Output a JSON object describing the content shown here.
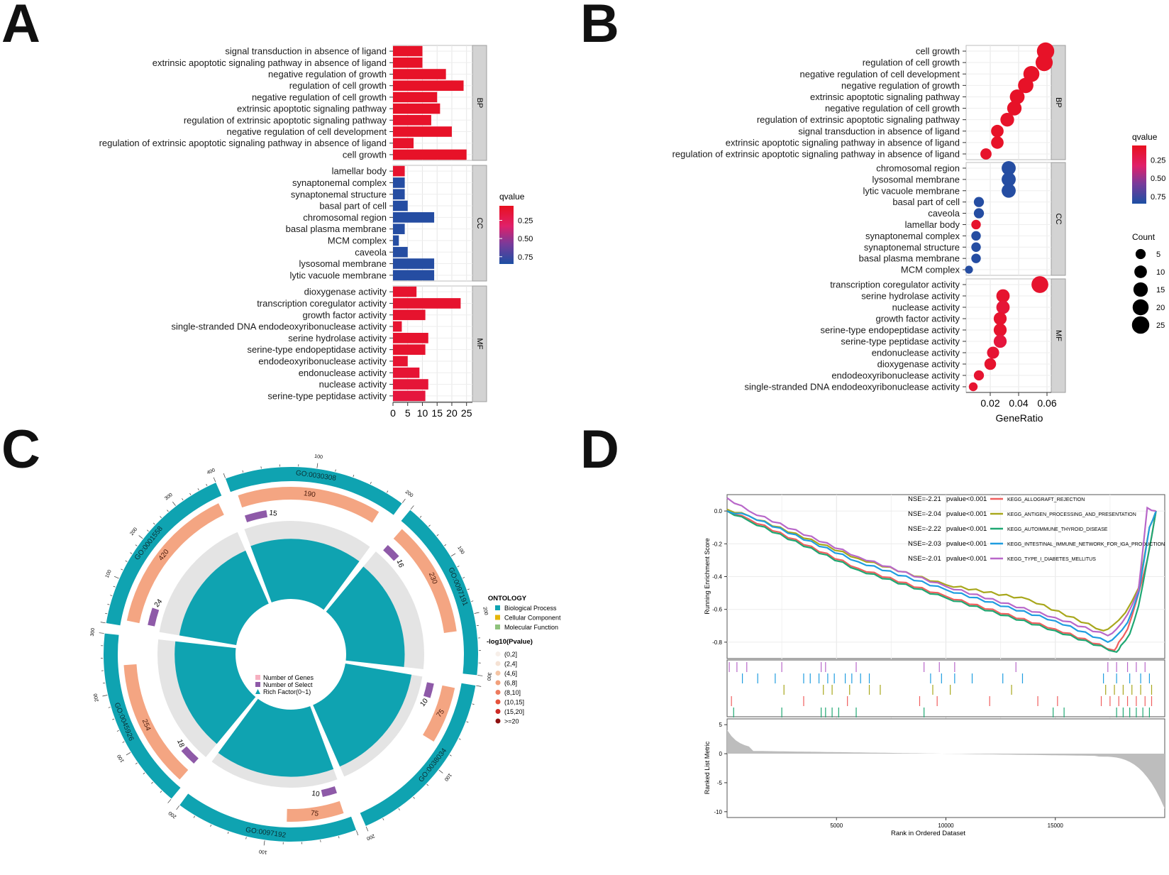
{
  "panel_labels": [
    "A",
    "B",
    "C",
    "D"
  ],
  "colors": {
    "red": "#e8101f",
    "mid": "#6a3a9e",
    "blue": "#1c4fa3",
    "teal": "#0fa3b1",
    "salmon": "#f4a582",
    "purple": "#8e5aa8",
    "strip": "#d3d3d3"
  },
  "chart_data": [
    {
      "id": "A",
      "type": "bar",
      "orientation": "horizontal",
      "xlim": [
        0,
        27
      ],
      "xticks": [
        "0",
        "5",
        "10",
        "15",
        "20",
        "25"
      ],
      "legend": {
        "title": "qvalue",
        "ticks": [
          "0.25",
          "0.50",
          "0.75"
        ],
        "range": [
          0.05,
          0.85
        ]
      },
      "facets": [
        {
          "strip": "BP",
          "categories": [
            "signal transduction in absence of ligand",
            "extrinsic apoptotic signaling pathway in absence of ligand",
            "negative regulation of growth",
            "regulation of cell growth",
            "negative regulation of cell growth",
            "extrinsic apoptotic signaling pathway",
            "regulation of extrinsic apoptotic signaling pathway",
            "negative regulation of cell development",
            "regulation of extrinsic apoptotic signaling pathway in absence of ligand",
            "cell growth"
          ],
          "values": [
            10,
            10,
            18,
            24,
            15,
            16,
            13,
            20,
            7,
            25
          ],
          "qvalues": [
            0.08,
            0.08,
            0.08,
            0.08,
            0.08,
            0.08,
            0.09,
            0.08,
            0.09,
            0.08
          ]
        },
        {
          "strip": "CC",
          "categories": [
            "lamellar body",
            "synaptonemal complex",
            "synaptonemal structure",
            "basal part of cell",
            "chromosomal region",
            "basal plasma membrane",
            "MCM complex",
            "caveola",
            "lysosomal membrane",
            "lytic vacuole membrane"
          ],
          "values": [
            4,
            4,
            4,
            5,
            14,
            4,
            2,
            5,
            14,
            14
          ],
          "qvalues": [
            0.1,
            0.82,
            0.82,
            0.82,
            0.82,
            0.82,
            0.82,
            0.82,
            0.82,
            0.82
          ]
        },
        {
          "strip": "MF",
          "categories": [
            "dioxygenase activity",
            "transcription coregulator activity",
            "growth factor activity",
            "single-stranded DNA endodeoxyribonuclease activity",
            "serine hydrolase activity",
            "serine-type endopeptidase activity",
            "endodeoxyribonuclease activity",
            "endonuclease activity",
            "nuclease activity",
            "serine-type peptidase activity"
          ],
          "values": [
            8,
            23,
            11,
            3,
            12,
            11,
            5,
            9,
            12,
            11
          ],
          "qvalues": [
            0.1,
            0.1,
            0.1,
            0.11,
            0.1,
            0.1,
            0.11,
            0.12,
            0.13,
            0.15
          ]
        }
      ]
    },
    {
      "id": "B",
      "type": "scatter",
      "xlabel": "GeneRatio",
      "xlim": [
        0.003,
        0.063
      ],
      "xticks": [
        0.02,
        0.04,
        0.06
      ],
      "xtick_labels": [
        "0.02",
        "0.04",
        "0.06"
      ],
      "legend": {
        "q_title": "qvalue",
        "q_ticks": [
          "0.25",
          "0.50",
          "0.75"
        ],
        "count_title": "Count",
        "count_ticks": [
          "5",
          "10",
          "15",
          "20",
          "25"
        ]
      },
      "facets": [
        {
          "strip": "BP",
          "categories": [
            "cell growth",
            "regulation of cell growth",
            "negative regulation of cell development",
            "negative regulation of growth",
            "extrinsic apoptotic signaling pathway",
            "negative regulation of cell growth",
            "regulation of extrinsic apoptotic signaling pathway",
            "signal transduction in absence of ligand",
            "extrinsic apoptotic signaling pathway in absence of ligand",
            "regulation of extrinsic apoptotic signaling pathway in absence of ligand"
          ],
          "x": [
            0.059,
            0.058,
            0.049,
            0.045,
            0.039,
            0.037,
            0.032,
            0.025,
            0.025,
            0.017
          ],
          "counts": [
            25,
            24,
            20,
            18,
            16,
            15,
            13,
            10,
            10,
            7
          ],
          "qvalues": [
            0.08,
            0.08,
            0.08,
            0.08,
            0.08,
            0.08,
            0.09,
            0.08,
            0.08,
            0.09
          ]
        },
        {
          "strip": "CC",
          "categories": [
            "chromosomal region",
            "lysosomal membrane",
            "lytic vacuole membrane",
            "basal part of cell",
            "caveola",
            "lamellar body",
            "synaptonemal complex",
            "synaptonemal structure",
            "basal plasma membrane",
            "MCM complex"
          ],
          "x": [
            0.033,
            0.033,
            0.033,
            0.012,
            0.012,
            0.01,
            0.01,
            0.01,
            0.01,
            0.005
          ],
          "counts": [
            14,
            14,
            14,
            5,
            5,
            4,
            4,
            4,
            4,
            2
          ],
          "qvalues": [
            0.82,
            0.82,
            0.82,
            0.82,
            0.82,
            0.1,
            0.82,
            0.82,
            0.82,
            0.82
          ]
        },
        {
          "strip": "MF",
          "categories": [
            "transcription coregulator activity",
            "serine hydrolase activity",
            "nuclease activity",
            "growth factor activity",
            "serine-type endopeptidase activity",
            "serine-type peptidase activity",
            "endonuclease activity",
            "dioxygenase activity",
            "endodeoxyribonuclease activity",
            "single-stranded DNA endodeoxyribonuclease activity"
          ],
          "x": [
            0.055,
            0.029,
            0.029,
            0.027,
            0.027,
            0.027,
            0.022,
            0.02,
            0.012,
            0.008
          ],
          "counts": [
            23,
            12,
            12,
            11,
            11,
            11,
            9,
            8,
            5,
            3
          ],
          "qvalues": [
            0.1,
            0.1,
            0.13,
            0.1,
            0.1,
            0.15,
            0.12,
            0.1,
            0.11,
            0.11
          ]
        }
      ]
    },
    {
      "id": "C",
      "type": "circos",
      "terms": [
        {
          "id": "GO:0030308",
          "ontology": "BP",
          "number_of_genes": 190,
          "number_of_select": 15,
          "rich_factor": 0.77,
          "scale_max": 200
        },
        {
          "id": "GO:0097191",
          "ontology": "BP",
          "number_of_genes": 230,
          "number_of_select": 16,
          "rich_factor": 0.75,
          "scale_max": 300
        },
        {
          "id": "GO:0038034",
          "ontology": "BP",
          "number_of_genes": 75,
          "number_of_select": 10,
          "rich_factor": 0.86,
          "scale_max": 200
        },
        {
          "id": "GO:0097192",
          "ontology": "BP",
          "number_of_genes": 75,
          "number_of_select": 10,
          "rich_factor": 0.86,
          "scale_max": 200
        },
        {
          "id": "GO:0045926",
          "ontology": "BP",
          "number_of_genes": 254,
          "number_of_select": 18,
          "rich_factor": 0.78,
          "scale_max": 300
        },
        {
          "id": "GO:0001558",
          "ontology": "BP",
          "number_of_genes": 420,
          "number_of_select": 24,
          "rich_factor": 0.74,
          "scale_max": 400
        }
      ],
      "scale_ticks_labelled": [
        "100",
        "200",
        "300",
        "400"
      ],
      "center_legend": [
        "Number of Genes",
        "Number of Select",
        "Rich Factor(0~1)"
      ],
      "ontology_legend": {
        "title": "ONTOLOGY",
        "items": [
          "Biological Process",
          "Cellular Component",
          "Molecular Function"
        ],
        "colors": [
          "#0fa3b1",
          "#e5b60a",
          "#8fc27c"
        ]
      },
      "pvalue_legend": {
        "title": "-log10(Pvalue)",
        "items": [
          "(0,2]",
          "(2,4]",
          "(4,6]",
          "(6,8]",
          "(8,10]",
          "(10,15]",
          "(15,20]",
          ">=20"
        ],
        "colors": [
          "#f7efe9",
          "#f5e2d4",
          "#f4c4a4",
          "#f1a07c",
          "#ec7b5e",
          "#e5533c",
          "#cc2a25",
          "#8e1010"
        ]
      }
    },
    {
      "id": "D",
      "type": "line",
      "subtype": "GSEA enrichment plot",
      "xlabel": "Rank in Ordered Dataset",
      "ylabel_top": "Running Enrichment Score",
      "ylabel_bottom": "Ranked List Metric",
      "xlim": [
        0,
        20000
      ],
      "xticks": [
        5000,
        10000,
        15000
      ],
      "xtick_labels": [
        "5000",
        "10000",
        "15000"
      ],
      "es_ylim": [
        -0.9,
        0.1
      ],
      "es_yticks": [
        "0.0",
        "-0.2",
        "-0.4",
        "-0.6",
        "-0.8"
      ],
      "es_ytick_values": [
        0.0,
        -0.2,
        -0.4,
        -0.6,
        -0.8
      ],
      "metric_ylim": [
        -11,
        6
      ],
      "metric_yticks": [
        "5",
        "0",
        "-5",
        "-10"
      ],
      "metric_ytick_values": [
        5,
        0,
        -5,
        -10
      ],
      "series": [
        {
          "name": "KEGG_ALLOGRAFT_REJECTION",
          "stat": "NSE=-2.21",
          "pvalue": "pvalue<0.001",
          "color": "#f05e5e",
          "ranks": [
            0,
            1000,
            6000,
            10000,
            15000,
            17700,
            17900,
            18300,
            18700,
            19200,
            19600
          ],
          "es": [
            0.0,
            -0.05,
            -0.35,
            -0.52,
            -0.72,
            -0.85,
            -0.8,
            -0.72,
            -0.55,
            -0.3,
            0.0
          ]
        },
        {
          "name": "KEGG_ANTIGEN_PROCESSING_AND_PRESENTATION",
          "stat": "NSE=-2.04",
          "pvalue": "pvalue<0.001",
          "color": "#a8a71c",
          "ranks": [
            0,
            1000,
            6000,
            10000,
            13800,
            17200,
            17600,
            18200,
            18800,
            19300,
            19600
          ],
          "es": [
            0.01,
            -0.03,
            -0.29,
            -0.45,
            -0.54,
            -0.73,
            -0.7,
            -0.62,
            -0.47,
            -0.1,
            0.0
          ]
        },
        {
          "name": "KEGG_AUTOIMMUNE_THYROID_DISEASE",
          "stat": "NSE=-2.22",
          "pvalue": "pvalue<0.001",
          "color": "#1fa873",
          "ranks": [
            0,
            1000,
            6000,
            10000,
            15000,
            17800,
            18000,
            18400,
            18800,
            19200,
            19600
          ],
          "es": [
            0.0,
            -0.06,
            -0.36,
            -0.53,
            -0.73,
            -0.86,
            -0.82,
            -0.75,
            -0.58,
            -0.3,
            0.0
          ]
        },
        {
          "name": "KEGG_INTESTINAL_IMMUNE_NETWORK_FOR_IGA_PRODUCTION",
          "stat": "NSE=-2.03",
          "pvalue": "pvalue<0.001",
          "color": "#1f9de0",
          "ranks": [
            0,
            1000,
            6000,
            10000,
            15000,
            17400,
            17800,
            18300,
            18800,
            19300,
            19600
          ],
          "es": [
            0.0,
            -0.03,
            -0.31,
            -0.48,
            -0.67,
            -0.8,
            -0.76,
            -0.68,
            -0.5,
            -0.1,
            0.0
          ]
        },
        {
          "name": "KEGG_TYPE_I_DIABETES_MELLITUS",
          "stat": "NSE=-2.01",
          "pvalue": "pvalue<0.001",
          "color": "#b867c9",
          "ranks": [
            0,
            1000,
            6000,
            10000,
            15000,
            17400,
            17800,
            18300,
            18800,
            19200,
            19600
          ],
          "es": [
            0.08,
            0.0,
            -0.28,
            -0.46,
            -0.65,
            -0.76,
            -0.72,
            -0.63,
            -0.48,
            0.02,
            0.0
          ]
        }
      ],
      "hits": [
        [
          100,
          450,
          900,
          2500,
          4300,
          4500,
          5900,
          9000,
          9700,
          10400,
          13200,
          17400,
          17800,
          18300,
          18700,
          19100
        ],
        [
          700,
          1400,
          2200,
          3500,
          3800,
          4200,
          4600,
          4900,
          5400,
          5700,
          6100,
          6500,
          9300,
          9800,
          10400,
          11200,
          12600,
          13500,
          17200,
          17800,
          18400,
          18900,
          19300
        ],
        [
          2600,
          4400,
          4800,
          5600,
          6500,
          7000,
          9400,
          10200,
          13000,
          17300,
          17700,
          18100,
          18500,
          18900,
          19400
        ],
        [
          200,
          3500,
          5500,
          8800,
          9600,
          12000,
          14200,
          15100,
          17100,
          17500,
          17900,
          18300,
          18700,
          19100,
          19400
        ],
        [
          300,
          2500,
          4300,
          4500,
          4800,
          5100,
          5900,
          9000,
          14900,
          15400,
          17800,
          18100,
          18400,
          18700,
          19000,
          19300
        ]
      ]
    }
  ]
}
